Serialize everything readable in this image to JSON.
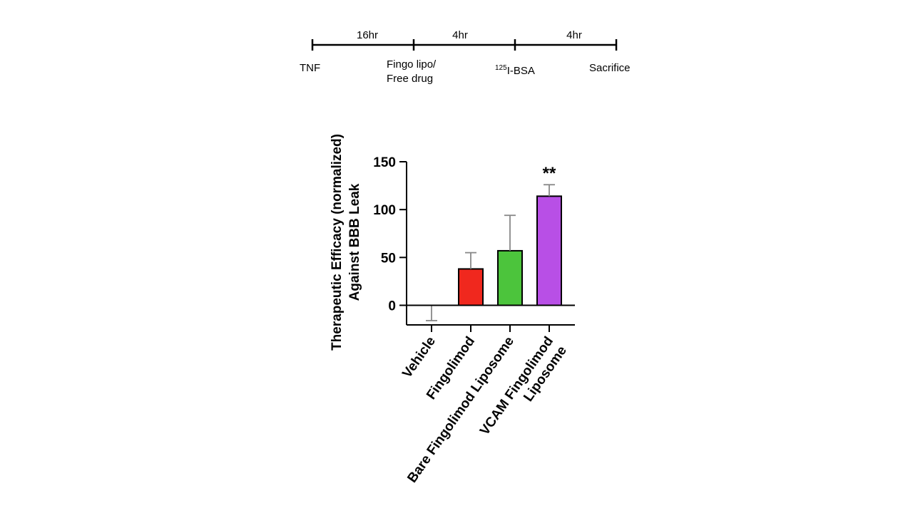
{
  "timeline": {
    "segments": [
      {
        "label": "16hr"
      },
      {
        "label": "4hr"
      },
      {
        "label": "4hr"
      }
    ],
    "events": [
      {
        "lines": [
          "TNF"
        ]
      },
      {
        "lines": [
          "Fingo lipo/",
          "Free drug"
        ]
      },
      {
        "sup": "125",
        "text": "I-BSA"
      },
      {
        "lines": [
          "Sacrifice"
        ]
      }
    ]
  },
  "chart_data": {
    "type": "bar",
    "categories": [
      "Vehicle",
      "Fingolimod",
      "Bare Fingolimod Liposome",
      "VCAM Fingolimod Liposome"
    ],
    "category_label_lines": [
      [
        "Vehicle"
      ],
      [
        "Fingolimod"
      ],
      [
        "Bare Fingolimod Liposome"
      ],
      [
        "VCAM Fingolimod",
        "Liposome"
      ]
    ],
    "values": [
      0,
      38,
      57,
      114
    ],
    "error_upper": [
      0,
      55,
      94,
      126
    ],
    "error_lower": [
      -16,
      38,
      57,
      114
    ],
    "colors": [
      "#ffffff",
      "#f0281e",
      "#4cc43c",
      "#b84fe6"
    ],
    "annotations": [
      {
        "category": "VCAM Fingolimod Liposome",
        "text": "**"
      }
    ],
    "title": "",
    "xlabel": "",
    "ylabel_lines": [
      "Therapeutic Efficacy (normalized)",
      "Against BBB Leak"
    ],
    "ylim": [
      -20,
      150
    ],
    "yticks": [
      0,
      50,
      100,
      150
    ],
    "grid": false,
    "legend": "none"
  }
}
